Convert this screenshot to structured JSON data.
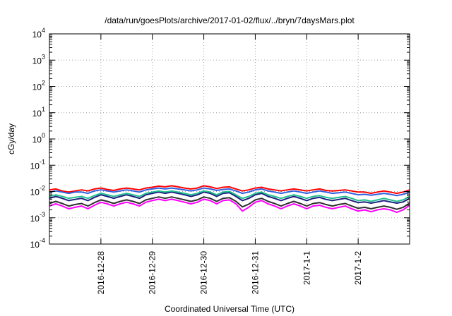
{
  "chart_data": {
    "type": "line",
    "title": "/data/run/goesPlots/archive/2017-01-02/flux/../bryn/7daysMars.plot",
    "xlabel": "Coordinated Universal Time (UTC)",
    "ylabel": "cGy/day",
    "y_scale": "log",
    "ylim": [
      0.0001,
      10000
    ],
    "xlim": [
      0,
      7
    ],
    "grid": true,
    "legend": "none",
    "y_ticks": [
      {
        "value": 0.0001,
        "base": "10",
        "exp": "-4"
      },
      {
        "value": 0.001,
        "base": "10",
        "exp": "-3"
      },
      {
        "value": 0.01,
        "base": "10",
        "exp": "-2"
      },
      {
        "value": 0.1,
        "base": "10",
        "exp": "-1"
      },
      {
        "value": 1,
        "base": "10",
        "exp": "0"
      },
      {
        "value": 10,
        "base": "10",
        "exp": "1"
      },
      {
        "value": 100,
        "base": "10",
        "exp": "2"
      },
      {
        "value": 1000,
        "base": "10",
        "exp": "3"
      },
      {
        "value": 10000,
        "base": "10",
        "exp": "4"
      }
    ],
    "x_ticks": [
      {
        "value": 1,
        "label": "2016-12-28"
      },
      {
        "value": 2,
        "label": "2016-12-29"
      },
      {
        "value": 3,
        "label": "2016-12-30"
      },
      {
        "value": 4,
        "label": "2016-12-31"
      },
      {
        "value": 5,
        "label": "2017-1-1"
      },
      {
        "value": 6,
        "label": "2017-1-2"
      }
    ],
    "x": [
      0.0,
      0.125,
      0.25,
      0.375,
      0.5,
      0.625,
      0.75,
      0.875,
      1.0,
      1.125,
      1.25,
      1.375,
      1.5,
      1.625,
      1.75,
      1.875,
      2.0,
      2.125,
      2.25,
      2.375,
      2.5,
      2.625,
      2.75,
      2.875,
      3.0,
      3.125,
      3.25,
      3.375,
      3.5,
      3.625,
      3.75,
      3.875,
      4.0,
      4.125,
      4.25,
      4.375,
      4.5,
      4.625,
      4.75,
      4.875,
      5.0,
      5.125,
      5.25,
      5.375,
      5.5,
      5.625,
      5.75,
      5.875,
      6.0,
      6.125,
      6.25,
      6.375,
      6.5,
      6.625,
      6.75,
      6.875,
      7.0
    ],
    "series": [
      {
        "color": "#ff0000",
        "values": [
          0.0115,
          0.0125,
          0.0105,
          0.0095,
          0.0105,
          0.0115,
          0.0105,
          0.0125,
          0.0135,
          0.012,
          0.011,
          0.0125,
          0.0135,
          0.0125,
          0.0115,
          0.0135,
          0.0145,
          0.016,
          0.015,
          0.0165,
          0.015,
          0.0135,
          0.0125,
          0.0135,
          0.0165,
          0.015,
          0.013,
          0.0145,
          0.015,
          0.0125,
          0.0105,
          0.0115,
          0.0135,
          0.0145,
          0.0125,
          0.0115,
          0.0105,
          0.0115,
          0.0125,
          0.0115,
          0.0105,
          0.0115,
          0.0125,
          0.011,
          0.0105,
          0.011,
          0.0115,
          0.0105,
          0.0095,
          0.0095,
          0.0085,
          0.0095,
          0.0105,
          0.0095,
          0.0085,
          0.0095,
          0.0115
        ]
      },
      {
        "color": "#3060e0",
        "values": [
          0.0095,
          0.0105,
          0.0095,
          0.0085,
          0.0095,
          0.0095,
          0.0085,
          0.0105,
          0.0115,
          0.0105,
          0.0095,
          0.0105,
          0.0115,
          0.0105,
          0.0095,
          0.0115,
          0.0125,
          0.0135,
          0.0125,
          0.0135,
          0.0125,
          0.0115,
          0.0105,
          0.0115,
          0.0135,
          0.0125,
          0.011,
          0.012,
          0.0125,
          0.0105,
          0.0085,
          0.0095,
          0.0115,
          0.0125,
          0.0105,
          0.0095,
          0.0085,
          0.0095,
          0.0105,
          0.0095,
          0.0085,
          0.0095,
          0.0105,
          0.0095,
          0.0085,
          0.009,
          0.0095,
          0.0085,
          0.0075,
          0.0078,
          0.0072,
          0.0078,
          0.0085,
          0.0078,
          0.007,
          0.0078,
          0.0095
        ]
      },
      {
        "color": "#1e1e80",
        "values": [
          0.0055,
          0.0065,
          0.0055,
          0.0045,
          0.005,
          0.0055,
          0.0045,
          0.006,
          0.0075,
          0.0065,
          0.0055,
          0.0065,
          0.0075,
          0.0065,
          0.0055,
          0.0075,
          0.0085,
          0.0095,
          0.0085,
          0.0095,
          0.0085,
          0.0075,
          0.0065,
          0.0075,
          0.0095,
          0.0085,
          0.0065,
          0.0085,
          0.009,
          0.0065,
          0.0045,
          0.0055,
          0.0075,
          0.0085,
          0.0065,
          0.0055,
          0.0045,
          0.0055,
          0.0065,
          0.0055,
          0.0045,
          0.0055,
          0.006,
          0.005,
          0.0045,
          0.005,
          0.0055,
          0.0045,
          0.0038,
          0.004,
          0.0036,
          0.004,
          0.0045,
          0.004,
          0.0036,
          0.004,
          0.0055
        ]
      },
      {
        "color": "#20c090",
        "values": [
          0.0065,
          0.0075,
          0.0065,
          0.0055,
          0.006,
          0.0065,
          0.0055,
          0.007,
          0.0085,
          0.0075,
          0.0065,
          0.0075,
          0.0085,
          0.0075,
          0.0065,
          0.0085,
          0.0095,
          0.0105,
          0.0095,
          0.0105,
          0.0095,
          0.0085,
          0.0075,
          0.0085,
          0.0105,
          0.0095,
          0.0075,
          0.0095,
          0.01,
          0.0075,
          0.0055,
          0.0065,
          0.0085,
          0.0095,
          0.0075,
          0.0065,
          0.0055,
          0.0065,
          0.0075,
          0.0065,
          0.0055,
          0.0065,
          0.007,
          0.006,
          0.0055,
          0.006,
          0.0065,
          0.0055,
          0.0045,
          0.0048,
          0.0042,
          0.0048,
          0.0055,
          0.0048,
          0.0042,
          0.0048,
          0.0065
        ]
      },
      {
        "color": "#303030",
        "values": [
          0.0035,
          0.0042,
          0.0035,
          0.0028,
          0.0032,
          0.0035,
          0.0028,
          0.0038,
          0.0048,
          0.0042,
          0.0035,
          0.0042,
          0.0048,
          0.0042,
          0.0035,
          0.0048,
          0.0055,
          0.0062,
          0.0055,
          0.0062,
          0.0055,
          0.0048,
          0.0042,
          0.0048,
          0.0062,
          0.0055,
          0.0042,
          0.0055,
          0.0058,
          0.0042,
          0.0026,
          0.0033,
          0.0048,
          0.0055,
          0.0042,
          0.0035,
          0.0028,
          0.0035,
          0.0042,
          0.0035,
          0.0028,
          0.0035,
          0.0038,
          0.0032,
          0.0028,
          0.0032,
          0.0035,
          0.0028,
          0.0023,
          0.0025,
          0.0022,
          0.0025,
          0.0028,
          0.0025,
          0.0021,
          0.0025,
          0.0036
        ]
      },
      {
        "color": "#ff00ff",
        "values": [
          0.0028,
          0.0034,
          0.0028,
          0.0022,
          0.0025,
          0.0028,
          0.0022,
          0.003,
          0.0039,
          0.0034,
          0.0028,
          0.0034,
          0.0039,
          0.0034,
          0.0028,
          0.0039,
          0.0045,
          0.0051,
          0.0045,
          0.0051,
          0.0045,
          0.0039,
          0.0034,
          0.0039,
          0.0051,
          0.0045,
          0.0034,
          0.0045,
          0.0048,
          0.0034,
          0.0018,
          0.0025,
          0.0039,
          0.0045,
          0.0034,
          0.0028,
          0.0022,
          0.0028,
          0.0034,
          0.0028,
          0.0022,
          0.0028,
          0.003,
          0.0025,
          0.0022,
          0.0025,
          0.0028,
          0.0022,
          0.0018,
          0.002,
          0.0017,
          0.002,
          0.0022,
          0.002,
          0.0016,
          0.002,
          0.003
        ]
      }
    ]
  }
}
